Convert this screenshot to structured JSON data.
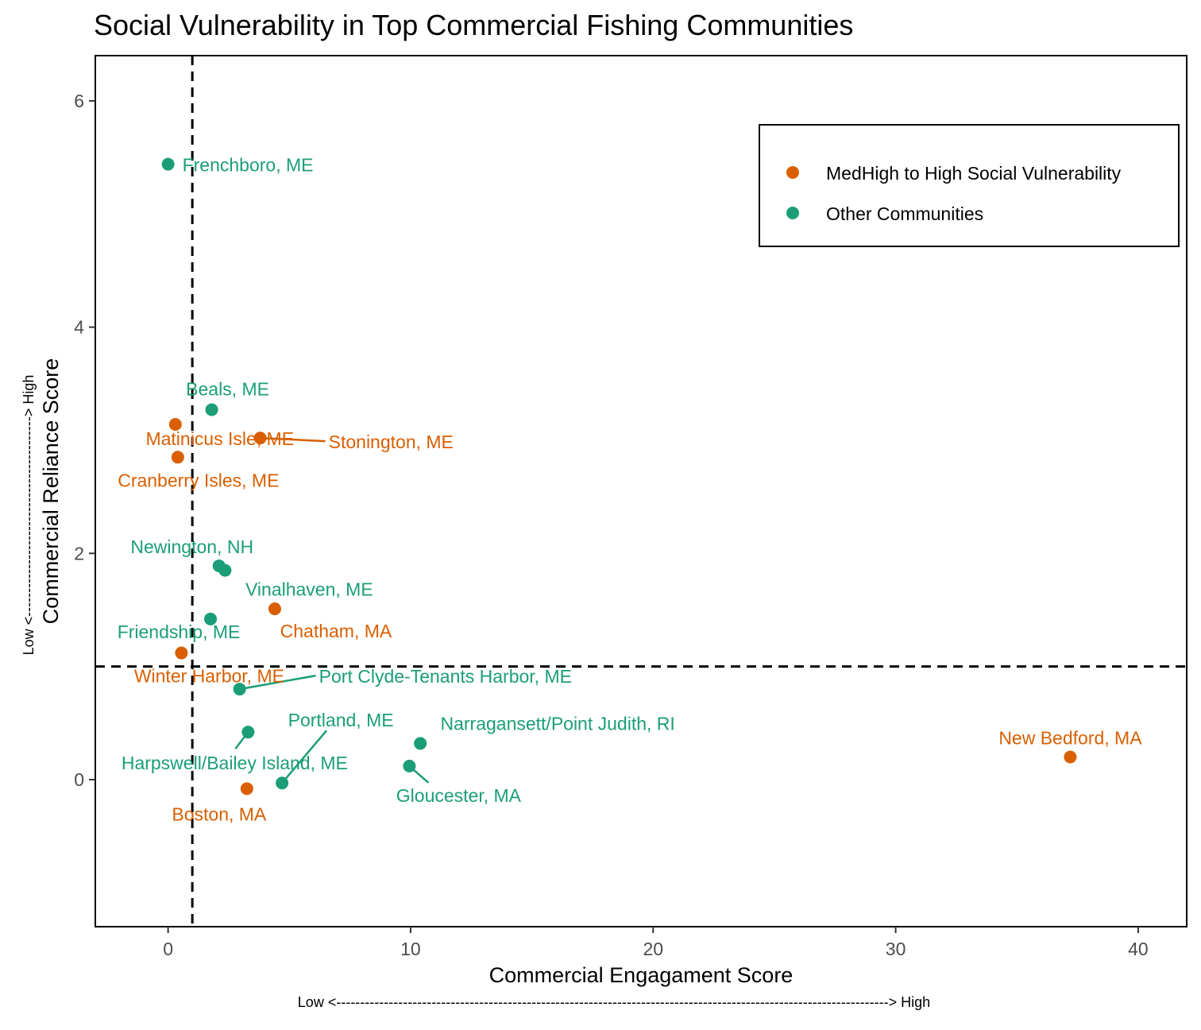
{
  "chart_data": {
    "type": "scatter",
    "title": "Social Vulnerability in Top Commercial Fishing Communities",
    "xlabel": "Commercial Engagament Score",
    "ylabel": "Commercial Reliance Score",
    "x_direction_label": "Low <--------------------------------------------------------------------------------------------------------------------> High",
    "y_direction_label": "Low <------------------------------------------> High",
    "xlim": [
      -3,
      42
    ],
    "ylim": [
      -1.3,
      6.4
    ],
    "x_ticks": [
      0,
      10,
      20,
      30,
      40
    ],
    "y_ticks": [
      0,
      2,
      4,
      6
    ],
    "reference_lines": {
      "x": 1.0,
      "y": 1.0
    },
    "grid": false,
    "legend_position": "top-right",
    "series": [
      {
        "name": "MedHigh to High Social Vulnerability",
        "color": "#d95f02",
        "points": [
          {
            "label": "Matinicus Isle, ME",
            "x": 0.3,
            "y": 3.14
          },
          {
            "label": "Cranberry Isles, ME",
            "x": 0.4,
            "y": 2.85
          },
          {
            "label": "Stonington, ME",
            "x": 3.8,
            "y": 3.02
          },
          {
            "label": "Chatham, MA",
            "x": 4.4,
            "y": 1.51
          },
          {
            "label": "Winter Harbor, ME",
            "x": 0.55,
            "y": 1.12
          },
          {
            "label": "Boston, MA",
            "x": 3.25,
            "y": -0.08
          },
          {
            "label": "New Bedford, MA",
            "x": 37.2,
            "y": 0.2
          }
        ]
      },
      {
        "name": "Other Communities",
        "color": "#1b9e77",
        "points": [
          {
            "label": "Frenchboro, ME",
            "x": 0.0,
            "y": 5.44
          },
          {
            "label": "Beals, ME",
            "x": 1.8,
            "y": 3.27
          },
          {
            "label": "Newington, NH",
            "x": 2.1,
            "y": 1.89
          },
          {
            "label": "Vinalhaven, ME",
            "x": 2.35,
            "y": 1.85
          },
          {
            "label": "Friendship, ME",
            "x": 1.75,
            "y": 1.42
          },
          {
            "label": "Port Clyde-Tenants Harbor, ME",
            "x": 2.95,
            "y": 0.8
          },
          {
            "label": "Harpswell/Bailey Island, ME",
            "x": 3.3,
            "y": 0.42
          },
          {
            "label": "Portland, ME",
            "x": 4.7,
            "y": -0.03
          },
          {
            "label": "Narragansett/Point Judith, RI",
            "x": 10.4,
            "y": 0.32
          },
          {
            "label": "Gloucester, MA",
            "x": 9.95,
            "y": 0.12
          }
        ]
      }
    ]
  }
}
